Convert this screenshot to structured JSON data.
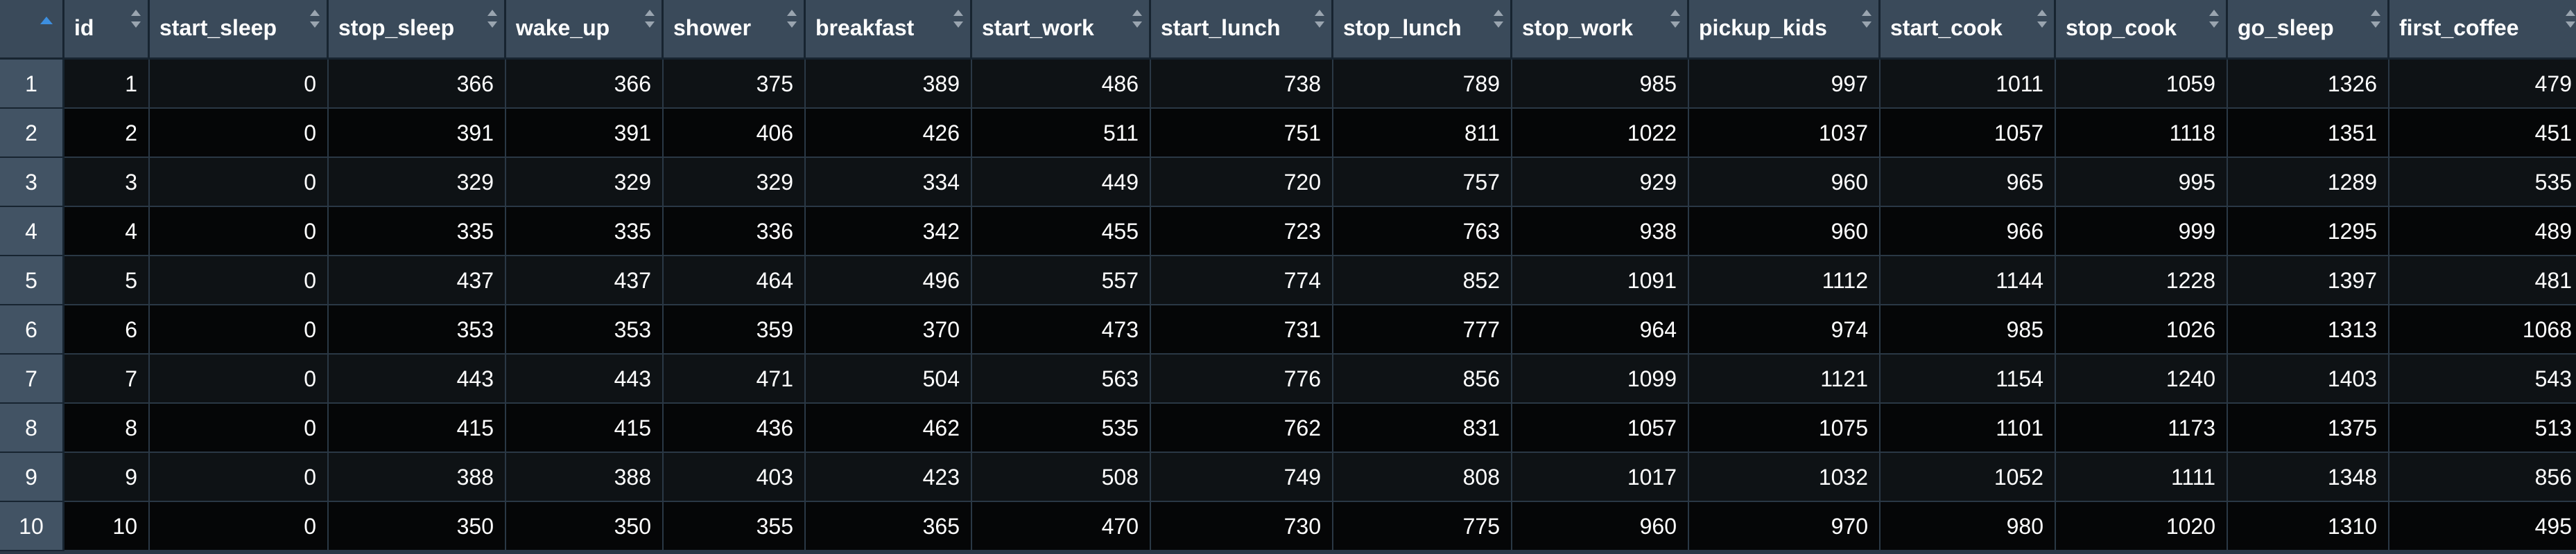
{
  "table": {
    "columns": [
      "id",
      "start_sleep",
      "stop_sleep",
      "wake_up",
      "shower",
      "breakfast",
      "start_work",
      "start_lunch",
      "stop_lunch",
      "stop_work",
      "pickup_kids",
      "start_cook",
      "stop_cook",
      "go_sleep",
      "first_coffee"
    ],
    "row_numbers": [
      "1",
      "2",
      "3",
      "4",
      "5",
      "6",
      "7",
      "8",
      "9",
      "10"
    ],
    "rows": [
      [
        "1",
        "0",
        "366",
        "366",
        "375",
        "389",
        "486",
        "738",
        "789",
        "985",
        "997",
        "1011",
        "1059",
        "1326",
        "479"
      ],
      [
        "2",
        "0",
        "391",
        "391",
        "406",
        "426",
        "511",
        "751",
        "811",
        "1022",
        "1037",
        "1057",
        "1118",
        "1351",
        "451"
      ],
      [
        "3",
        "0",
        "329",
        "329",
        "329",
        "334",
        "449",
        "720",
        "757",
        "929",
        "960",
        "965",
        "995",
        "1289",
        "535"
      ],
      [
        "4",
        "0",
        "335",
        "335",
        "336",
        "342",
        "455",
        "723",
        "763",
        "938",
        "960",
        "966",
        "999",
        "1295",
        "489"
      ],
      [
        "5",
        "0",
        "437",
        "437",
        "464",
        "496",
        "557",
        "774",
        "852",
        "1091",
        "1112",
        "1144",
        "1228",
        "1397",
        "481"
      ],
      [
        "6",
        "0",
        "353",
        "353",
        "359",
        "370",
        "473",
        "731",
        "777",
        "964",
        "974",
        "985",
        "1026",
        "1313",
        "1068"
      ],
      [
        "7",
        "0",
        "443",
        "443",
        "471",
        "504",
        "563",
        "776",
        "856",
        "1099",
        "1121",
        "1154",
        "1240",
        "1403",
        "543"
      ],
      [
        "8",
        "0",
        "415",
        "415",
        "436",
        "462",
        "535",
        "762",
        "831",
        "1057",
        "1075",
        "1101",
        "1173",
        "1375",
        "513"
      ],
      [
        "9",
        "0",
        "388",
        "388",
        "403",
        "423",
        "508",
        "749",
        "808",
        "1017",
        "1032",
        "1052",
        "1111",
        "1348",
        "856"
      ],
      [
        "10",
        "0",
        "350",
        "350",
        "355",
        "365",
        "470",
        "730",
        "775",
        "960",
        "970",
        "980",
        "1020",
        "1310",
        "495"
      ]
    ],
    "sort": {
      "column": "row_numbers",
      "direction": "ascending"
    }
  },
  "colors": {
    "header_bg": "#3a4a5a",
    "rowhead_bg": "#425364",
    "row_odd": "#0e1215",
    "row_even": "#050607",
    "sort_accent": "#3d8fe0"
  },
  "icons": {
    "sort": "sort-arrows-icon",
    "sorted_ascending": "sort-ascending-icon"
  }
}
